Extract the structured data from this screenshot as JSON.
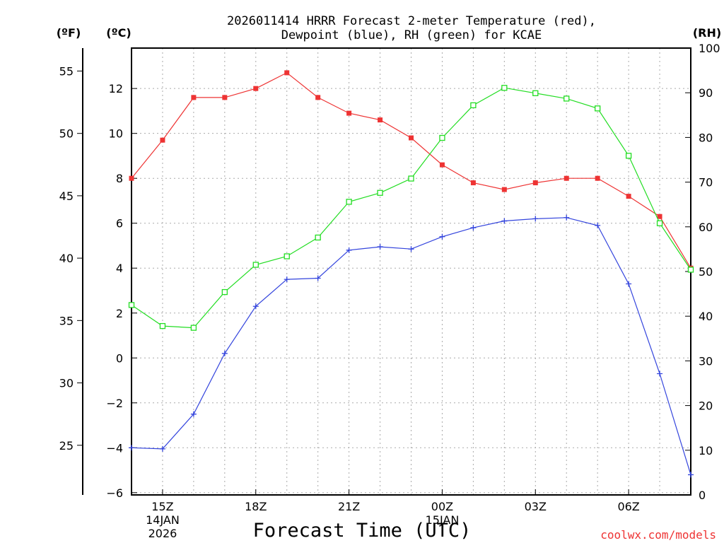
{
  "chart_data": {
    "type": "line",
    "title_line1": "2026011414 HRRR Forecast 2-meter Temperature (red),",
    "title_line2": "Dewpoint (blue), RH (green) for KCAE",
    "xlabel": "Forecast Time (UTC)",
    "credit": "coolwx.com/models",
    "axis_units": {
      "fahrenheit": "(ºF)",
      "celsius": "(ºC)",
      "rh": "(RH)"
    },
    "x_hours": [
      14,
      15,
      16,
      17,
      18,
      19,
      20,
      21,
      22,
      23,
      24,
      25,
      26,
      27,
      28,
      29,
      30,
      31,
      32
    ],
    "x_range": [
      14,
      32
    ],
    "x_ticks": [
      {
        "hour": 15,
        "label": "15Z",
        "line2": "14JAN",
        "line3": "2026"
      },
      {
        "hour": 18,
        "label": "18Z"
      },
      {
        "hour": 21,
        "label": "21Z"
      },
      {
        "hour": 24,
        "label": "00Z",
        "line2": "15JAN"
      },
      {
        "hour": 27,
        "label": "03Z"
      },
      {
        "hour": 30,
        "label": "06Z"
      }
    ],
    "celsius_range": [
      -6.1,
      13.8
    ],
    "celsius_ticks": [
      -6,
      -4,
      -2,
      0,
      2,
      4,
      6,
      8,
      10,
      12
    ],
    "celsius_tick_labels": [
      "−6",
      "−4",
      "−2",
      "0",
      "2",
      "4",
      "6",
      "8",
      "10",
      "12"
    ],
    "fahrenheit_ticks": [
      25,
      30,
      35,
      40,
      45,
      50,
      55
    ],
    "rh_range": [
      0,
      100
    ],
    "rh_ticks": [
      0,
      10,
      20,
      30,
      40,
      50,
      60,
      70,
      80,
      90,
      100
    ],
    "series": [
      {
        "name": "Temperature",
        "unit": "C",
        "axis": "celsius",
        "color": "#ee3333",
        "marker": "filled-square",
        "values": [
          8.0,
          9.7,
          11.6,
          11.6,
          12.0,
          12.7,
          11.6,
          10.9,
          10.6,
          9.8,
          8.6,
          7.8,
          7.5,
          7.8,
          8.0,
          8.0,
          7.2,
          6.3,
          4.0
        ]
      },
      {
        "name": "Dewpoint",
        "unit": "C",
        "axis": "celsius",
        "color": "#3344dd",
        "marker": "plus",
        "values": [
          -4.0,
          -4.05,
          -2.5,
          0.2,
          2.3,
          3.5,
          3.55,
          4.8,
          4.95,
          4.85,
          5.4,
          5.8,
          6.1,
          6.2,
          6.25,
          5.9,
          3.3,
          -0.7,
          -5.2
        ]
      },
      {
        "name": "Relative Humidity",
        "unit": "%",
        "axis": "rh",
        "color": "#22dd22",
        "marker": "open-square",
        "values": [
          42.5,
          37.8,
          37.4,
          45.4,
          51.5,
          53.4,
          57.6,
          65.6,
          67.6,
          70.8,
          79.9,
          87.2,
          91.1,
          89.9,
          88.7,
          86.5,
          75.9,
          60.8,
          50.4
        ]
      }
    ]
  }
}
